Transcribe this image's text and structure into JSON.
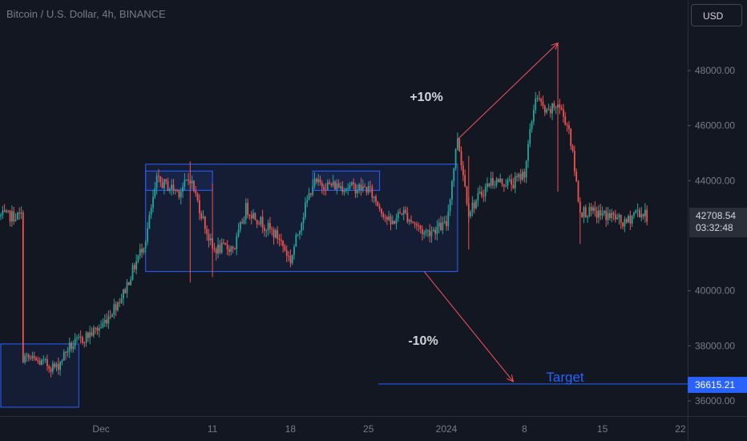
{
  "header": {
    "symbol_title": "Bitcoin / U.S. Dollar, 4h, BINANCE"
  },
  "price_scale": {
    "currency": "USD",
    "ticks": [
      "48000.00",
      "46000.00",
      "44000.00",
      "40000.00",
      "38000.00",
      "36000.00"
    ]
  },
  "last_price": {
    "price": "42708.54",
    "countdown": "03:32:48"
  },
  "target_label": {
    "price": "36615.21"
  },
  "time_axis": {
    "ticks": [
      "Dec",
      "11",
      "18",
      "25",
      "2024",
      "8",
      "15",
      "22"
    ]
  },
  "annotations": {
    "up_move": "+10%",
    "down_move": "-10%",
    "target": "Target"
  },
  "colors": {
    "background": "#131722",
    "up": "#26a69a",
    "down": "#ef5350",
    "box": "#2962ff",
    "arrow": "#f7525f"
  },
  "chart_data": {
    "type": "candlestick",
    "title": "Bitcoin / U.S. Dollar, 4h, BINANCE",
    "ylim": [
      35500,
      49200
    ],
    "anchors": [
      {
        "date": "2023-11-24",
        "price": 37600
      },
      {
        "date": "2023-11-27",
        "price": 37200
      },
      {
        "date": "2023-11-28",
        "price": 37900
      },
      {
        "date": "2023-12-01",
        "price": 38700
      },
      {
        "date": "2023-12-03",
        "price": 39900
      },
      {
        "date": "2023-12-05",
        "price": 41900
      },
      {
        "date": "2023-12-06",
        "price": 44000
      },
      {
        "date": "2023-12-08",
        "price": 43600
      },
      {
        "date": "2023-12-09",
        "price": 44100
      },
      {
        "date": "2023-12-11",
        "price": 41500
      },
      {
        "date": "2023-12-13",
        "price": 41600
      },
      {
        "date": "2023-12-14",
        "price": 43000
      },
      {
        "date": "2023-12-17",
        "price": 41900
      },
      {
        "date": "2023-12-18",
        "price": 41100
      },
      {
        "date": "2023-12-19",
        "price": 42600
      },
      {
        "date": "2023-12-20",
        "price": 43900
      },
      {
        "date": "2023-12-25",
        "price": 43700
      },
      {
        "date": "2023-12-27",
        "price": 42400
      },
      {
        "date": "2023-12-28",
        "price": 42900
      },
      {
        "date": "2023-12-30",
        "price": 42100
      },
      {
        "date": "2024-01-01",
        "price": 42400
      },
      {
        "date": "2024-01-02",
        "price": 45600
      },
      {
        "date": "2024-01-03",
        "price": 42900
      },
      {
        "date": "2024-01-05",
        "price": 44000
      },
      {
        "date": "2024-01-07",
        "price": 43900
      },
      {
        "date": "2024-01-08",
        "price": 44300
      },
      {
        "date": "2024-01-09",
        "price": 47100
      },
      {
        "date": "2024-01-10",
        "price": 46400
      },
      {
        "date": "2024-01-11",
        "price": 46800
      },
      {
        "date": "2024-01-12",
        "price": 45900
      },
      {
        "date": "2024-01-13",
        "price": 42900
      },
      {
        "date": "2024-01-16",
        "price": 42700
      },
      {
        "date": "2024-01-17",
        "price": 42400
      },
      {
        "date": "2024-01-18",
        "price": 42900
      },
      {
        "date": "2024-01-19",
        "price": 42710
      }
    ],
    "zones": [
      {
        "start": "2023-11-22",
        "end": "2023-11-29",
        "low": 35770,
        "high": 38070
      },
      {
        "start": "2023-12-05",
        "end": "2024-01-02",
        "low": 40700,
        "high": 44600
      },
      {
        "start": "2023-12-05",
        "end": "2023-12-11",
        "low": 43650,
        "high": 44350
      },
      {
        "start": "2023-12-20",
        "end": "2023-12-26",
        "low": 43650,
        "high": 44350
      }
    ],
    "arrows": [
      {
        "from": {
          "date": "2024-01-02",
          "price": 45500
        },
        "to": {
          "date": "2024-01-11",
          "price": 49000
        },
        "label": "+10%"
      },
      {
        "from": {
          "date": "2023-12-30",
          "price": 40700
        },
        "to": {
          "date": "2024-01-07",
          "price": 36700
        },
        "label": "-10%"
      }
    ],
    "target_line": {
      "price": 36615.21,
      "label": "Target"
    },
    "last_price": 42708.54
  }
}
